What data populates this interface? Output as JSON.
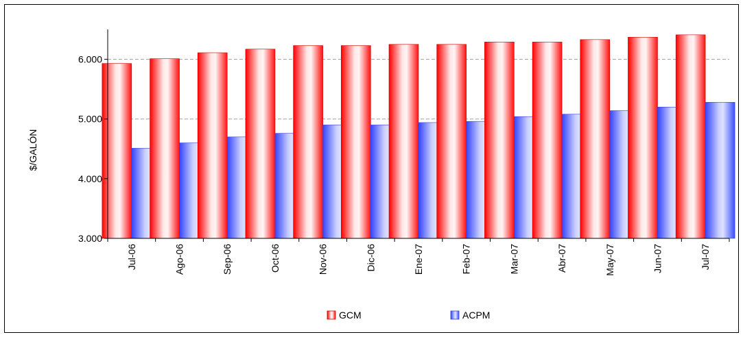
{
  "chart_data": {
    "type": "bar",
    "title": "",
    "xlabel": "",
    "ylabel": "$/GALÓN",
    "ylim": [
      3000,
      6500
    ],
    "yticks": [
      3000,
      4000,
      5000,
      6000
    ],
    "ytick_labels": [
      "3.000",
      "4.000",
      "5.000",
      "6.000"
    ],
    "grid": true,
    "legend_position": "bottom",
    "categories": [
      "Jul-06",
      "Ago-06",
      "Sep-06",
      "Oct-06",
      "Nov-06",
      "Dic-06",
      "Ene-07",
      "Feb-07",
      "Mar-07",
      "Abr-07",
      "May-07",
      "Jun-07",
      "Jul-07"
    ],
    "series": [
      {
        "name": "GCM",
        "color": "#ff0000",
        "values": [
          5930,
          6010,
          6110,
          6170,
          6230,
          6230,
          6250,
          6250,
          6290,
          6290,
          6330,
          6370,
          6410
        ]
      },
      {
        "name": "ACPM",
        "color": "#5a6cff",
        "values": [
          4510,
          4600,
          4700,
          4760,
          4900,
          4900,
          4940,
          4960,
          5040,
          5080,
          5140,
          5200,
          5280
        ]
      }
    ]
  }
}
